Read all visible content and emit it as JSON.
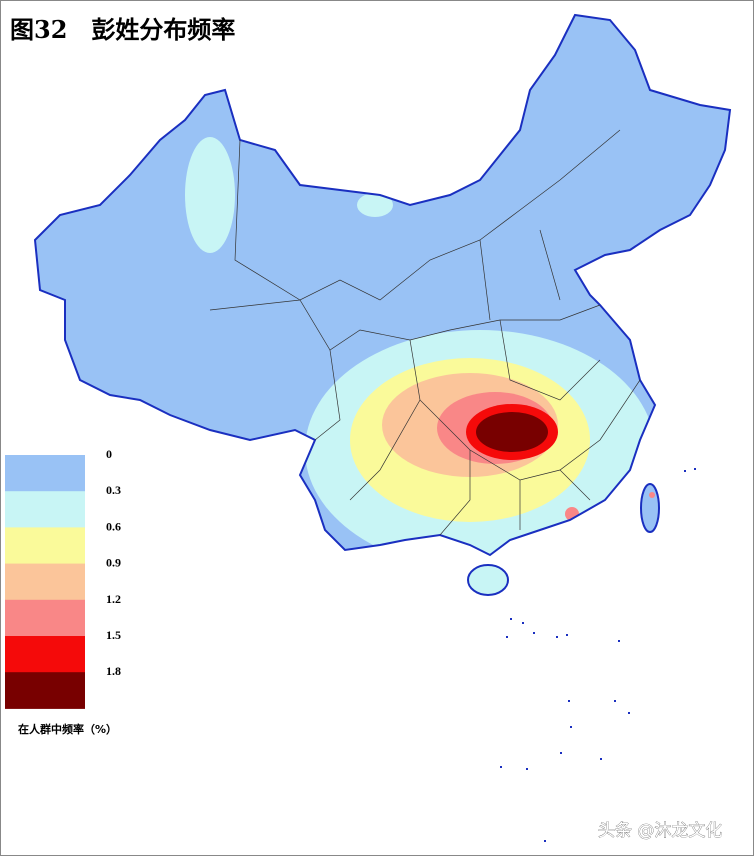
{
  "title": "图32　彭姓分布频率",
  "legend": {
    "items": [
      {
        "label": 0,
        "color": "#99c2f5"
      },
      {
        "label": 0.3,
        "color": "#c8f5f5"
      },
      {
        "label": 0.6,
        "color": "#fafa9a"
      },
      {
        "label": 0.9,
        "color": "#fbc59a"
      },
      {
        "label": 1.2,
        "color": "#f98787"
      },
      {
        "label": 1.5,
        "color": "#f50a0a"
      },
      {
        "label": 1.8,
        "color": "#780000"
      }
    ],
    "caption": "在人群中频率（%）"
  },
  "watermark": "头条 @沐龙文化"
}
